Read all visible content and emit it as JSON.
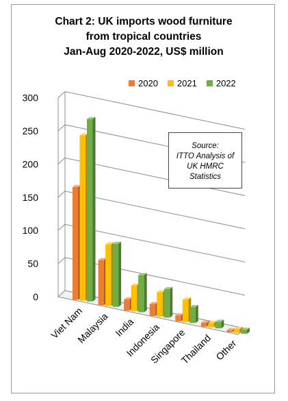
{
  "chart_data": {
    "type": "bar",
    "title_lines": [
      "Chart 2: UK imports wood furniture",
      "from tropical countries",
      "Jan-Aug 2020-2022, US$ million"
    ],
    "categories": [
      "Viet Nam",
      "Malaysia",
      "India",
      "Indonesia",
      "Singapore",
      "Thailand",
      "Other"
    ],
    "series": [
      {
        "name": "2020",
        "values": [
          170,
          68,
          17,
          18,
          9,
          6,
          3
        ],
        "color": "#ED7D31"
      },
      {
        "name": "2021",
        "values": [
          249,
          93,
          39,
          37,
          34,
          7,
          6
        ],
        "color": "#FFC000"
      },
      {
        "name": "2022",
        "values": [
          275,
          95,
          56,
          43,
          24,
          10,
          6
        ],
        "color": "#70AD47"
      }
    ],
    "ylim": [
      0,
      300
    ],
    "yticks": [
      "300",
      "250",
      "200",
      "150",
      "100",
      "50",
      "0"
    ],
    "xlabel": "",
    "ylabel": "",
    "grid": true,
    "legend_position": "top-right",
    "source_lines": [
      "Source:",
      "ITTO Analysis of",
      "UK HMRC",
      "Statistics"
    ]
  }
}
